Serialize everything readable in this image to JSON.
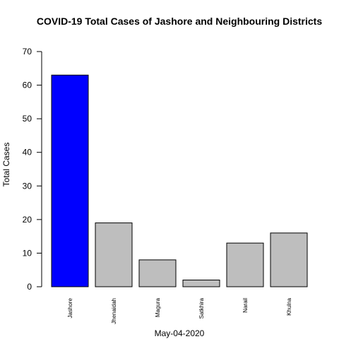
{
  "chart_data": {
    "type": "bar",
    "title": "COVID-19 Total Cases of Jashore and Neighbouring Districts",
    "xlabel": "May-04-2020",
    "ylabel": "Total Cases",
    "categories": [
      "Jashore",
      "Jhenaidah",
      "Magura",
      "Satkhira",
      "Narail",
      "Khulna"
    ],
    "values": [
      63,
      19,
      8,
      2,
      13,
      16
    ],
    "colors": [
      "#0000ff",
      "#bebebe",
      "#bebebe",
      "#bebebe",
      "#bebebe",
      "#bebebe"
    ],
    "ylim": [
      0,
      70
    ],
    "yticks": [
      0,
      10,
      20,
      30,
      40,
      50,
      60,
      70
    ],
    "grid": false,
    "legend": "none"
  }
}
